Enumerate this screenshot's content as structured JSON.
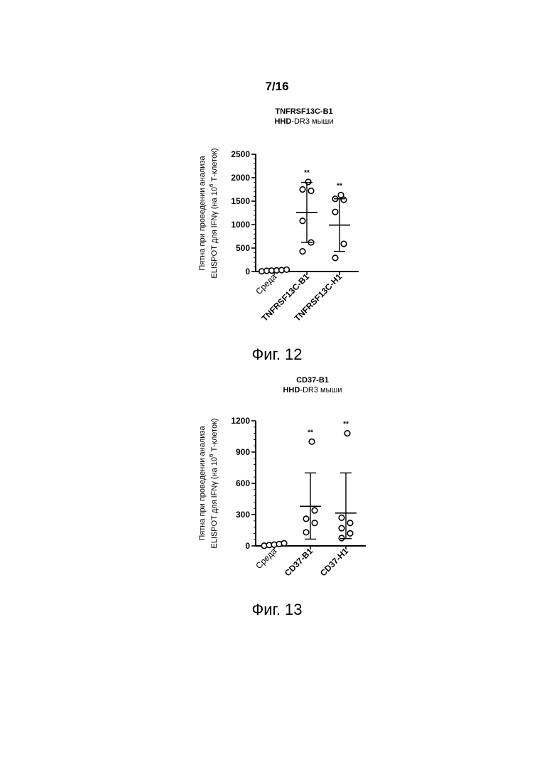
{
  "page_number": "7/16",
  "figures": [
    {
      "caption": "Фиг. 12",
      "title_line1": "TNFRSF13C-B1",
      "title_line2_bold": "HHD",
      "title_line2_rest": "-DR3 мыши"
    },
    {
      "caption": "Фиг. 13",
      "title_line1": "CD37-B1",
      "title_line2_bold": "HHD",
      "title_line2_rest": "-DR3 мыши"
    }
  ],
  "chart_data": [
    {
      "type": "scatter",
      "title": "TNFRSF13C-B1",
      "subtitle": "HHD-DR3 мыши",
      "ylabel_line1": "Пятна при проведении анализа",
      "ylabel_line2": "ELISPOT для IFNγ (на 10",
      "ylabel_sup": "6",
      "ylabel_line2_end": " Т-клеток)",
      "ylim": [
        0,
        2500
      ],
      "yticks": [
        0,
        500,
        1000,
        1500,
        2000,
        2500
      ],
      "categories": [
        "Среда",
        "TNFRSF13C-B1",
        "TNFRSF13C-H1"
      ],
      "category_bold": [
        false,
        true,
        true
      ],
      "points": [
        [
          5,
          15,
          20,
          25,
          30,
          40
        ],
        [
          430,
          620,
          1080,
          1720,
          1750,
          1910
        ],
        [
          290,
          590,
          1270,
          1530,
          1550,
          1630
        ]
      ],
      "mean": [
        null,
        1260,
        990
      ],
      "sd_low": [
        null,
        620,
        430
      ],
      "sd_high": [
        null,
        1900,
        1550
      ],
      "significance": [
        "",
        "**",
        "**"
      ]
    },
    {
      "type": "scatter",
      "title": "CD37-B1",
      "subtitle": "HHD-DR3 мыши",
      "ylabel_line1": "Пятна при проведении анализа",
      "ylabel_line2": "ELISPOT для IFNγ (на 10",
      "ylabel_sup": "6",
      "ylabel_line2_end": " Т-клеток)",
      "ylim": [
        0,
        1200
      ],
      "yticks": [
        0,
        300,
        600,
        900,
        1200
      ],
      "categories": [
        "Среда",
        "CD37-B1",
        "CD37-H1"
      ],
      "category_bold": [
        false,
        true,
        true
      ],
      "points": [
        [
          2,
          8,
          12,
          18,
          25
        ],
        [
          130,
          220,
          260,
          340,
          1000
        ],
        [
          75,
          120,
          170,
          220,
          270,
          1080
        ]
      ],
      "mean": [
        null,
        380,
        315
      ],
      "sd_low": [
        null,
        65,
        70
      ],
      "sd_high": [
        null,
        700,
        700
      ],
      "significance": [
        "",
        "**",
        "**"
      ]
    }
  ]
}
